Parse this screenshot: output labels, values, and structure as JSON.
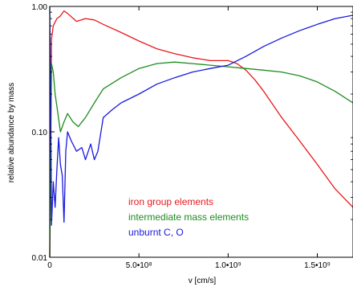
{
  "chart_data": {
    "type": "line",
    "title": "",
    "xlabel": "v [cm/s]",
    "ylabel": "relative abundance by mass",
    "xscale": "linear",
    "yscale": "log",
    "xlim": [
      0,
      1700000000
    ],
    "ylim": [
      0.01,
      1.0
    ],
    "grid": false,
    "legend_placement": "lower-center",
    "x_ticks": [
      {
        "value": 0,
        "label": "0"
      },
      {
        "value": 500000000,
        "label": "5.0•10⁸"
      },
      {
        "value": 1000000000,
        "label": "1.0•10⁹"
      },
      {
        "value": 1500000000,
        "label": "1.5•10⁹"
      }
    ],
    "y_ticks": [
      {
        "value": 0.01,
        "label": "0.01"
      },
      {
        "value": 0.1,
        "label": "0.10"
      },
      {
        "value": 1.0,
        "label": "1.00"
      }
    ],
    "series": [
      {
        "name": "iron group elements",
        "color": "#e8191c",
        "x": [
          0,
          10000000,
          20000000,
          40000000,
          60000000,
          80000000,
          100000000,
          150000000,
          200000000,
          250000000,
          300000000,
          400000000,
          500000000,
          600000000,
          700000000,
          800000000,
          900000000,
          1000000000,
          1050000000,
          1100000000,
          1150000000,
          1200000000,
          1300000000,
          1400000000,
          1500000000,
          1600000000,
          1700000000
        ],
        "y": [
          0.01,
          0.55,
          0.7,
          0.8,
          0.84,
          0.92,
          0.88,
          0.76,
          0.8,
          0.78,
          0.72,
          0.62,
          0.53,
          0.46,
          0.42,
          0.39,
          0.37,
          0.37,
          0.35,
          0.31,
          0.26,
          0.21,
          0.13,
          0.085,
          0.055,
          0.035,
          0.025
        ]
      },
      {
        "name": "intermediate mass elements",
        "color": "#1e8c1e",
        "x": [
          0,
          10000000,
          20000000,
          30000000,
          40000000,
          60000000,
          80000000,
          100000000,
          130000000,
          160000000,
          200000000,
          250000000,
          300000000,
          400000000,
          500000000,
          600000000,
          700000000,
          800000000,
          900000000,
          1000000000,
          1100000000,
          1200000000,
          1300000000,
          1400000000,
          1500000000,
          1600000000,
          1700000000
        ],
        "y": [
          0.01,
          0.35,
          0.3,
          0.2,
          0.16,
          0.1,
          0.12,
          0.14,
          0.12,
          0.11,
          0.13,
          0.17,
          0.22,
          0.27,
          0.32,
          0.35,
          0.36,
          0.35,
          0.34,
          0.33,
          0.32,
          0.31,
          0.3,
          0.28,
          0.25,
          0.21,
          0.17
        ]
      },
      {
        "name": "unburnt C, O",
        "color": "#1919e0",
        "x": [
          0,
          5000000,
          10000000,
          20000000,
          30000000,
          40000000,
          50000000,
          60000000,
          70000000,
          80000000,
          90000000,
          100000000,
          120000000,
          150000000,
          180000000,
          200000000,
          230000000,
          250000000,
          270000000,
          300000000,
          350000000,
          400000000,
          500000000,
          600000000,
          700000000,
          800000000,
          900000000,
          1000000000,
          1100000000,
          1200000000,
          1300000000,
          1400000000,
          1500000000,
          1600000000,
          1700000000
        ],
        "y": [
          1.0,
          0.2,
          0.018,
          0.04,
          0.025,
          0.05,
          0.09,
          0.055,
          0.045,
          0.019,
          0.07,
          0.1,
          0.085,
          0.07,
          0.075,
          0.06,
          0.08,
          0.06,
          0.07,
          0.13,
          0.15,
          0.17,
          0.2,
          0.24,
          0.27,
          0.3,
          0.32,
          0.34,
          0.4,
          0.48,
          0.56,
          0.64,
          0.72,
          0.8,
          0.85
        ]
      }
    ]
  }
}
